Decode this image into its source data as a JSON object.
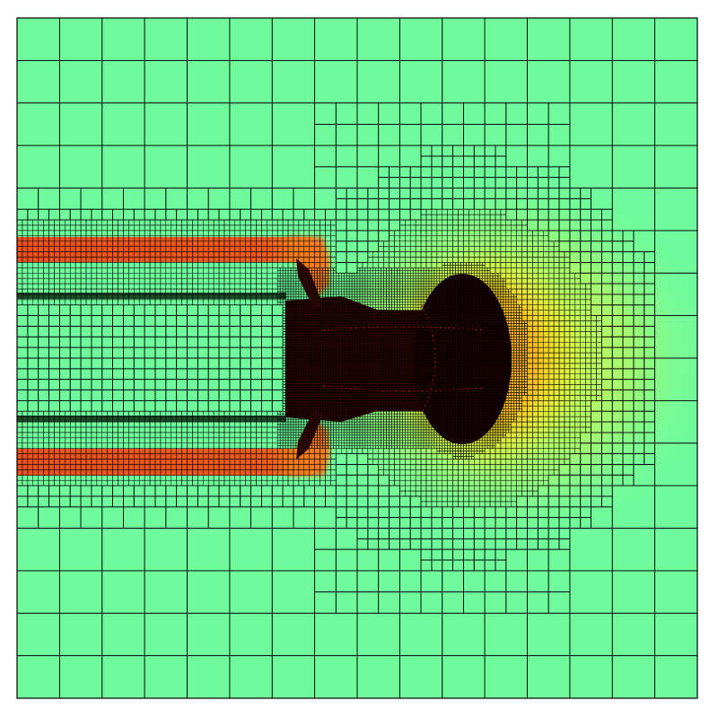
{
  "figure": {
    "background": "#ffffff",
    "domain_background_color": "#6ffb9c",
    "grid_line_color": "#000000",
    "heat_colors": {
      "warm_green": "#a8f86a",
      "yellow_green": "#d8fa45",
      "yellow": "#fbf71f",
      "orange": "#f59a17",
      "red_orange": "#e8501c",
      "dark_red": "#6a0b0b",
      "core": "#1c0303"
    }
  }
}
